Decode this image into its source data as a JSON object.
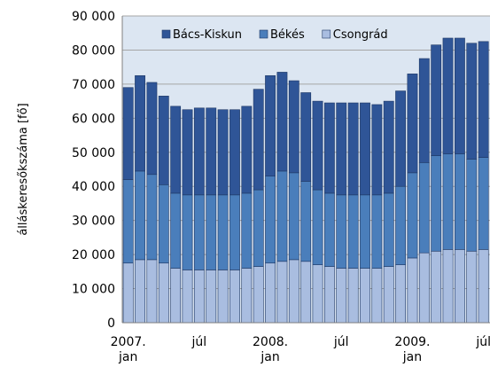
{
  "chart_data": {
    "type": "stacked_bar",
    "y_label": "álláskeresőkszáma [fő]",
    "categories": [
      "2007. jan",
      null,
      null,
      null,
      null,
      null,
      "júl",
      null,
      null,
      null,
      null,
      null,
      "2008. jan",
      null,
      null,
      null,
      null,
      null,
      "júl",
      null,
      null,
      null,
      null,
      null,
      "2009. jan",
      null,
      null,
      null,
      null,
      null,
      "júl"
    ],
    "series": [
      {
        "name": "Csongrád",
        "color": "#a9bde0",
        "values": [
          17500,
          18500,
          18500,
          17500,
          16000,
          15500,
          15500,
          15500,
          15500,
          15500,
          16000,
          16500,
          17500,
          18000,
          18500,
          18000,
          17000,
          16500,
          16000,
          16000,
          16000,
          16000,
          16500,
          17000,
          19000,
          20500,
          21000,
          21500,
          21500,
          21000,
          21500
        ]
      },
      {
        "name": "Békés",
        "color": "#4a7ebb",
        "values": [
          24500,
          26000,
          25000,
          23000,
          22000,
          22000,
          22000,
          22000,
          22000,
          22000,
          22000,
          22500,
          25500,
          26500,
          25500,
          23500,
          22000,
          21500,
          21500,
          21500,
          21500,
          21500,
          21500,
          23000,
          25000,
          26500,
          28000,
          28000,
          28000,
          27000,
          27000
        ]
      },
      {
        "name": "Bács-Kiskun",
        "color": "#2f5597",
        "values": [
          27000,
          28000,
          27000,
          26000,
          25500,
          25000,
          25500,
          25500,
          25000,
          25000,
          25500,
          29500,
          29500,
          29000,
          27000,
          26000,
          26000,
          26500,
          27000,
          27000,
          27000,
          26500,
          27000,
          28000,
          29000,
          30500,
          32500,
          34000,
          34000,
          34000,
          34000
        ]
      }
    ],
    "ylim": [
      0,
      90000
    ],
    "yticks": [
      0,
      {
        "value": 10000,
        "label": "10 000"
      },
      {
        "value": 20000,
        "label": "20 000"
      },
      {
        "value": 30000,
        "label": "30 000"
      },
      {
        "value": 40000,
        "label": "40 000"
      },
      {
        "value": 50000,
        "label": "50 000"
      },
      {
        "value": 60000,
        "label": "60 000"
      },
      {
        "value": 70000,
        "label": "70 000"
      },
      {
        "value": 80000,
        "label": "80 000"
      },
      {
        "value": 90000,
        "label": "90 000"
      }
    ],
    "grid": true,
    "legend": "top"
  }
}
